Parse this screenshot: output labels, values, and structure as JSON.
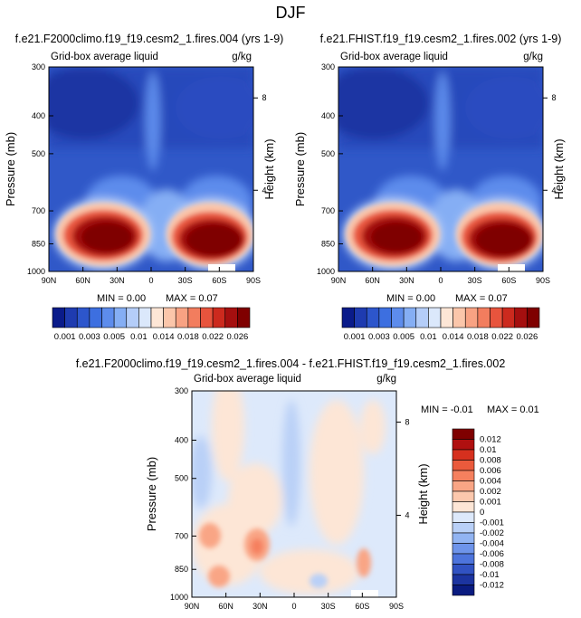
{
  "page_title": "DJF",
  "panels": [
    {
      "title": "f.e21.F2000climo.f19_f19.cesm2_1.fires.004 (yrs 1-9)",
      "subtitle_left": "Grid-box average liquid",
      "subtitle_right": "g/kg",
      "ylabel": "Pressure (mb)",
      "ylabel_right": "Height (km)",
      "min_label": "MIN =  0.00",
      "max_label": "MAX =  0.07"
    },
    {
      "title": "f.e21.FHIST.f19_f19.cesm2_1.fires.002 (yrs 1-9)",
      "subtitle_left": "Grid-box average liquid",
      "subtitle_right": "g/kg",
      "ylabel": "Pressure (mb)",
      "ylabel_right": "Height (km)",
      "min_label": "MIN =  0.00",
      "max_label": "MAX =  0.07"
    },
    {
      "title": "f.e21.F2000climo.f19_f19.cesm2_1.fires.004 - f.e21.FHIST.f19_f19.cesm2_1.fires.002",
      "subtitle_left": "Grid-box average liquid",
      "subtitle_right": "g/kg",
      "ylabel": "Pressure (mb)",
      "ylabel_right": "Height (km)",
      "min_label": "MIN = -0.01",
      "max_label": "MAX =  0.01"
    }
  ],
  "x_ticks": [
    "90N",
    "60N",
    "30N",
    "0",
    "30S",
    "60S",
    "90S"
  ],
  "p_ticks": [
    "300",
    "400",
    "500",
    "700",
    "850",
    "1000"
  ],
  "h_ticks": [
    "8",
    "4"
  ],
  "colorbar_main": {
    "colors": [
      "#0a1b8a",
      "#1e3bb0",
      "#2d56cc",
      "#3d6fe0",
      "#5d8cec",
      "#85aef4",
      "#b4cdf8",
      "#dbe8fb",
      "#fde6d6",
      "#fbc6aa",
      "#f8a283",
      "#f27d5e",
      "#e8543d",
      "#cc2a1e",
      "#a50f0f",
      "#7f0000"
    ],
    "labels": [
      "0.001",
      "0.003",
      "0.005",
      "0.01",
      "0.014",
      "0.018",
      "0.022",
      "0.026"
    ]
  },
  "colorbar_diff": {
    "colors": [
      "#7f0000",
      "#b01010",
      "#d6301e",
      "#ea5a3c",
      "#f5805e",
      "#f9a585",
      "#fcc8ad",
      "#fde6d6",
      "#dde9fb",
      "#b9d0f7",
      "#92b4f2",
      "#6e94ea",
      "#4d74dc",
      "#3152c2",
      "#1c34a0",
      "#0a1b80"
    ],
    "labels": [
      "0.012",
      "0.01",
      "0.008",
      "0.006",
      "0.004",
      "0.002",
      "0.001",
      "0",
      "-0.001",
      "-0.002",
      "-0.004",
      "-0.006",
      "-0.008",
      "-0.01",
      "-0.012"
    ]
  },
  "chart_data": [
    {
      "type": "heatmap",
      "title": "f.e21.F2000climo.f19_f19.cesm2_1.fires.004 (yrs 1-9)",
      "xlabel": "",
      "ylabel": "Pressure (mb)",
      "x_categories": [
        "90N",
        "60N",
        "30N",
        "0",
        "30S",
        "60S",
        "90S"
      ],
      "y_ticks": [
        300,
        400,
        500,
        700,
        850,
        1000
      ],
      "units": "g/kg",
      "min": 0.0,
      "max": 0.07
    },
    {
      "type": "heatmap",
      "title": "f.e21.FHIST.f19_f19.cesm2_1.fires.002 (yrs 1-9)",
      "xlabel": "",
      "ylabel": "Pressure (mb)",
      "x_categories": [
        "90N",
        "60N",
        "30N",
        "0",
        "30S",
        "60S",
        "90S"
      ],
      "y_ticks": [
        300,
        400,
        500,
        700,
        850,
        1000
      ],
      "units": "g/kg",
      "min": 0.0,
      "max": 0.07
    },
    {
      "type": "heatmap",
      "title": "f.e21.F2000climo.f19_f19.cesm2_1.fires.004 - f.e21.FHIST.f19_f19.cesm2_1.fires.002",
      "xlabel": "",
      "ylabel": "Pressure (mb)",
      "x_categories": [
        "90N",
        "60N",
        "30N",
        "0",
        "30S",
        "60S",
        "90S"
      ],
      "y_ticks": [
        300,
        400,
        500,
        700,
        850,
        1000
      ],
      "units": "g/kg",
      "min": -0.01,
      "max": 0.01
    }
  ]
}
